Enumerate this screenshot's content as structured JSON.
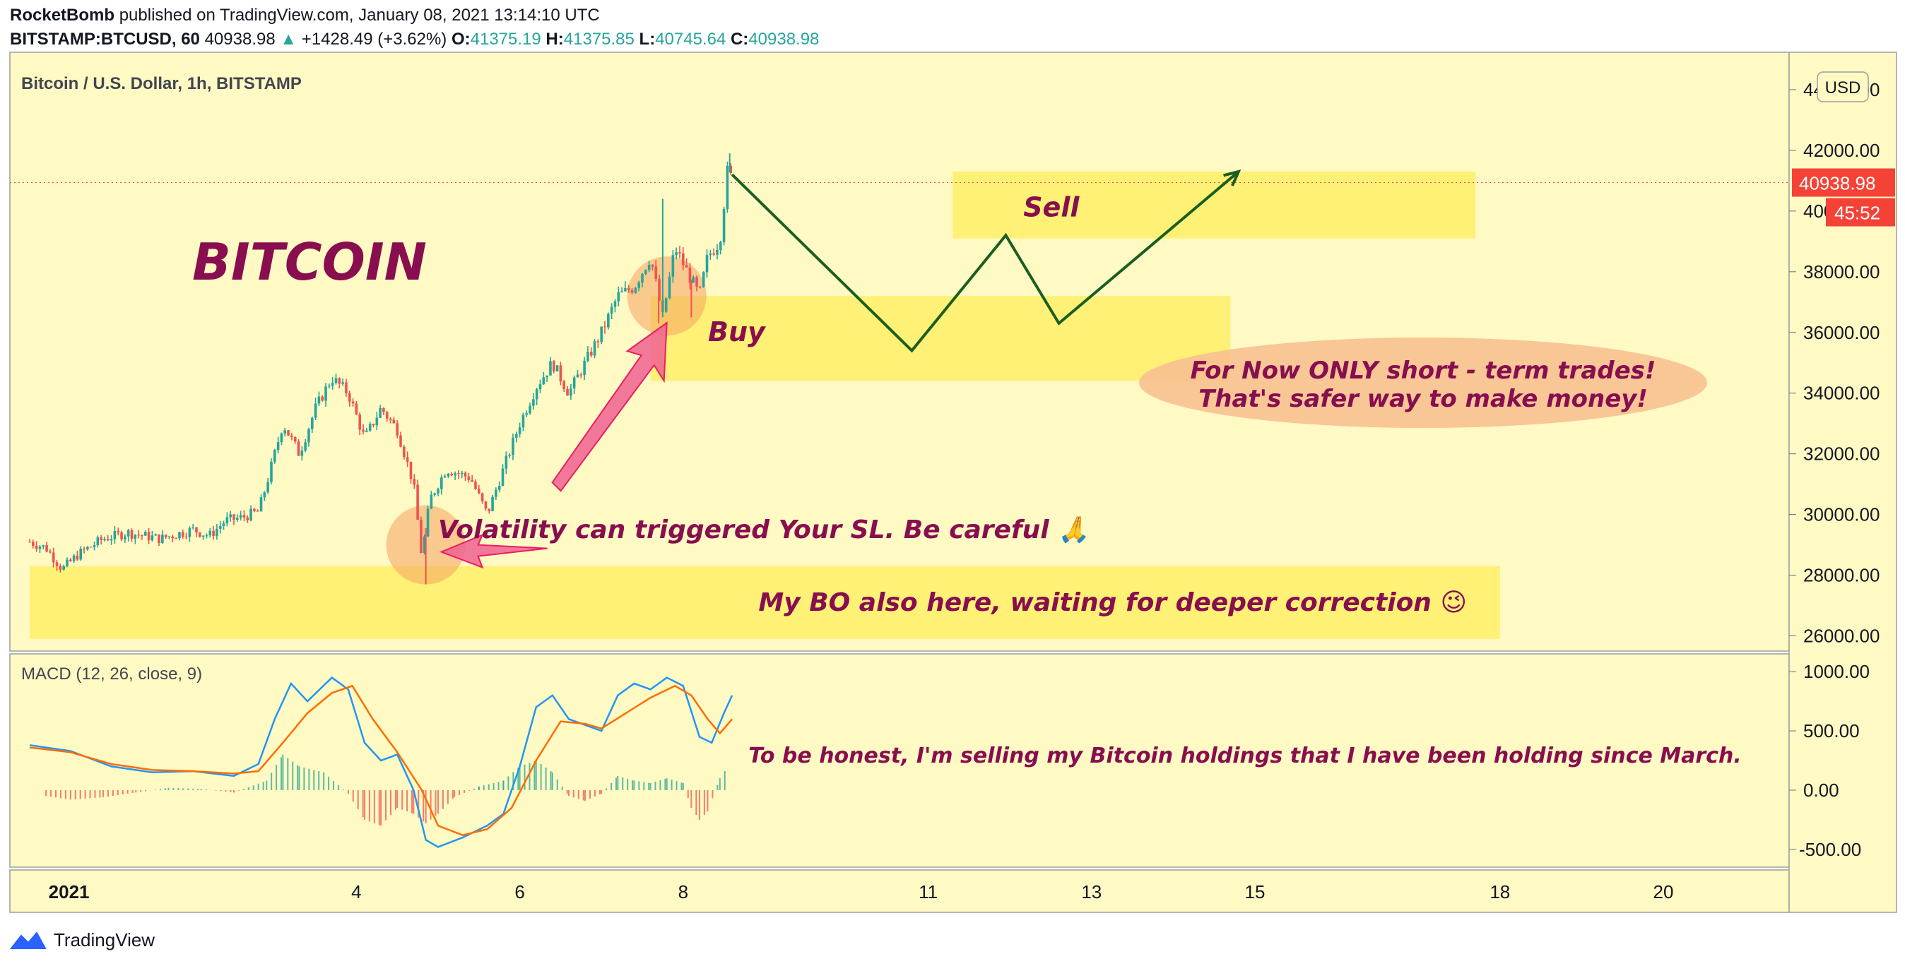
{
  "header": {
    "publisher": "RocketBomb",
    "published_on": "published on TradingView.com, January 08, 2021 13:14:10 UTC",
    "symbol": "BITSTAMP:BTCUSD, 60",
    "last": "40938.98",
    "change": "+1428.49 (+3.62%)",
    "open_label": "O:",
    "open": "41375.19",
    "high_label": "H:",
    "high": "41375.85",
    "low_label": "L:",
    "low": "40745.64",
    "close_label": "C:",
    "close": "40938.98"
  },
  "footer": {
    "brand": "TradingView"
  },
  "colors": {
    "background": "#fff9c4",
    "zone": "#fff176",
    "up": "#26a69a",
    "down": "#ef5350",
    "text_accent": "#880e4f",
    "path": "#1b5e20",
    "price_tag": "#f44336",
    "macd_line": "#2196f3",
    "signal_line": "#ff6d00"
  },
  "chart_data": [
    {
      "type": "candlestick",
      "title": "Bitcoin / U.S. Dollar, 1h, BITSTAMP",
      "currency": "USD",
      "ylim": [
        25500,
        45000
      ],
      "y_ticks": [
        "26000.00",
        "28000.00",
        "30000.00",
        "32000.00",
        "34000.00",
        "36000.00",
        "38000.00",
        "40000.00",
        "42000.00",
        "44000.00"
      ],
      "x_ticks": [
        {
          "label": "2021",
          "day": 1
        },
        {
          "label": "4",
          "day": 4
        },
        {
          "label": "6",
          "day": 6
        },
        {
          "label": "8",
          "day": 8
        },
        {
          "label": "11",
          "day": 11
        },
        {
          "label": "13",
          "day": 13
        },
        {
          "label": "15",
          "day": 15
        },
        {
          "label": "18",
          "day": 18
        },
        {
          "label": "20",
          "day": 20
        }
      ],
      "price_path": [
        {
          "day": 0.0,
          "price": 29100
        },
        {
          "day": 0.2,
          "price": 28900
        },
        {
          "day": 0.4,
          "price": 28200
        },
        {
          "day": 0.6,
          "price": 28700
        },
        {
          "day": 0.9,
          "price": 29200
        },
        {
          "day": 1.2,
          "price": 29400
        },
        {
          "day": 1.6,
          "price": 29200
        },
        {
          "day": 2.0,
          "price": 29500
        },
        {
          "day": 2.2,
          "price": 29300
        },
        {
          "day": 2.4,
          "price": 29800
        },
        {
          "day": 2.6,
          "price": 29900
        },
        {
          "day": 2.8,
          "price": 30100
        },
        {
          "day": 2.9,
          "price": 31000
        },
        {
          "day": 3.1,
          "price": 33000
        },
        {
          "day": 3.3,
          "price": 32000
        },
        {
          "day": 3.5,
          "price": 33500
        },
        {
          "day": 3.7,
          "price": 34500
        },
        {
          "day": 3.9,
          "price": 34000
        },
        {
          "day": 4.1,
          "price": 32500
        },
        {
          "day": 4.3,
          "price": 33500
        },
        {
          "day": 4.5,
          "price": 32800
        },
        {
          "day": 4.7,
          "price": 31000
        },
        {
          "day": 4.8,
          "price": 28600
        },
        {
          "day": 4.9,
          "price": 30500
        },
        {
          "day": 5.1,
          "price": 31500
        },
        {
          "day": 5.4,
          "price": 31200
        },
        {
          "day": 5.6,
          "price": 30000
        },
        {
          "day": 5.8,
          "price": 31500
        },
        {
          "day": 6.0,
          "price": 33000
        },
        {
          "day": 6.2,
          "price": 34200
        },
        {
          "day": 6.4,
          "price": 35000
        },
        {
          "day": 6.6,
          "price": 34000
        },
        {
          "day": 6.8,
          "price": 35000
        },
        {
          "day": 7.0,
          "price": 36000
        },
        {
          "day": 7.2,
          "price": 37200
        },
        {
          "day": 7.4,
          "price": 37500
        },
        {
          "day": 7.6,
          "price": 38500
        },
        {
          "day": 7.75,
          "price": 36500
        },
        {
          "day": 7.9,
          "price": 38800
        },
        {
          "day": 8.05,
          "price": 38000
        },
        {
          "day": 8.2,
          "price": 37200
        },
        {
          "day": 8.3,
          "price": 38500
        },
        {
          "day": 8.45,
          "price": 39000
        },
        {
          "day": 8.55,
          "price": 41500
        },
        {
          "day": 8.6,
          "price": 40938.98
        }
      ],
      "spikes": [
        {
          "day": 4.85,
          "low": 27700
        },
        {
          "day": 7.7,
          "low": 36300
        },
        {
          "day": 7.75,
          "high": 40400
        },
        {
          "day": 8.1,
          "low": 36500
        },
        {
          "day": 8.57,
          "high": 41900
        }
      ],
      "last_price": "40938.98",
      "countdown": "45:52",
      "zones": [
        {
          "label": "Sell",
          "day_from": 11.3,
          "day_to": 17.7,
          "y_from": 39100,
          "y_to": 41300
        },
        {
          "label": "Buy",
          "day_from": 7.6,
          "day_to": 14.7,
          "y_from": 34400,
          "y_to": 37200
        },
        {
          "label": "My BO also here, waiting for deeper correction 😉",
          "day_from": 0.0,
          "day_to": 18.0,
          "y_from": 25900,
          "y_to": 28300
        }
      ],
      "projection": [
        {
          "day": 8.6,
          "price": 41200
        },
        {
          "day": 10.8,
          "price": 35400
        },
        {
          "day": 11.95,
          "price": 39200
        },
        {
          "day": 12.6,
          "price": 36300
        },
        {
          "day": 14.8,
          "price": 41300
        }
      ],
      "circles": [
        {
          "day": 4.85,
          "price": 29000
        },
        {
          "day": 7.8,
          "price": 37200
        }
      ],
      "annotations": {
        "bitcoin": "BITCOIN",
        "volatility": "Volatility can triggered Your SL. Be careful 🙏",
        "note_line1": "For Now ONLY short - term trades!",
        "note_line2": "That's safer way to make money!"
      }
    },
    {
      "type": "line",
      "title": "MACD (12, 26, close, 9)",
      "ylim": [
        -650,
        1150
      ],
      "y_ticks": [
        "1000.00",
        "500.00",
        "0.00",
        "-500.00"
      ],
      "series": [
        {
          "name": "MACD",
          "points": [
            {
              "day": 0.0,
              "value": 380
            },
            {
              "day": 0.5,
              "value": 330
            },
            {
              "day": 1.0,
              "value": 200
            },
            {
              "day": 1.5,
              "value": 150
            },
            {
              "day": 2.0,
              "value": 160
            },
            {
              "day": 2.5,
              "value": 120
            },
            {
              "day": 2.8,
              "value": 220
            },
            {
              "day": 3.0,
              "value": 600
            },
            {
              "day": 3.2,
              "value": 900
            },
            {
              "day": 3.4,
              "value": 750
            },
            {
              "day": 3.7,
              "value": 950
            },
            {
              "day": 3.9,
              "value": 850
            },
            {
              "day": 4.1,
              "value": 400
            },
            {
              "day": 4.3,
              "value": 250
            },
            {
              "day": 4.5,
              "value": 300
            },
            {
              "day": 4.7,
              "value": 0
            },
            {
              "day": 4.85,
              "value": -420
            },
            {
              "day": 5.0,
              "value": -480
            },
            {
              "day": 5.3,
              "value": -400
            },
            {
              "day": 5.6,
              "value": -300
            },
            {
              "day": 5.8,
              "value": -200
            },
            {
              "day": 6.0,
              "value": 200
            },
            {
              "day": 6.2,
              "value": 700
            },
            {
              "day": 6.4,
              "value": 800
            },
            {
              "day": 6.6,
              "value": 600
            },
            {
              "day": 6.8,
              "value": 550
            },
            {
              "day": 7.0,
              "value": 500
            },
            {
              "day": 7.2,
              "value": 800
            },
            {
              "day": 7.4,
              "value": 900
            },
            {
              "day": 7.6,
              "value": 850
            },
            {
              "day": 7.8,
              "value": 950
            },
            {
              "day": 8.0,
              "value": 880
            },
            {
              "day": 8.2,
              "value": 450
            },
            {
              "day": 8.35,
              "value": 400
            },
            {
              "day": 8.5,
              "value": 650
            },
            {
              "day": 8.6,
              "value": 800
            }
          ]
        },
        {
          "name": "Signal",
          "points": [
            {
              "day": 0.0,
              "value": 360
            },
            {
              "day": 0.5,
              "value": 320
            },
            {
              "day": 1.0,
              "value": 220
            },
            {
              "day": 1.5,
              "value": 170
            },
            {
              "day": 2.0,
              "value": 160
            },
            {
              "day": 2.5,
              "value": 140
            },
            {
              "day": 2.8,
              "value": 160
            },
            {
              "day": 3.1,
              "value": 400
            },
            {
              "day": 3.4,
              "value": 650
            },
            {
              "day": 3.7,
              "value": 820
            },
            {
              "day": 3.95,
              "value": 880
            },
            {
              "day": 4.2,
              "value": 600
            },
            {
              "day": 4.5,
              "value": 320
            },
            {
              "day": 4.8,
              "value": 0
            },
            {
              "day": 5.0,
              "value": -300
            },
            {
              "day": 5.3,
              "value": -380
            },
            {
              "day": 5.6,
              "value": -330
            },
            {
              "day": 5.9,
              "value": -150
            },
            {
              "day": 6.2,
              "value": 250
            },
            {
              "day": 6.5,
              "value": 580
            },
            {
              "day": 6.8,
              "value": 560
            },
            {
              "day": 7.0,
              "value": 520
            },
            {
              "day": 7.3,
              "value": 650
            },
            {
              "day": 7.6,
              "value": 780
            },
            {
              "day": 7.9,
              "value": 880
            },
            {
              "day": 8.1,
              "value": 800
            },
            {
              "day": 8.3,
              "value": 600
            },
            {
              "day": 8.45,
              "value": 480
            },
            {
              "day": 8.6,
              "value": 600
            }
          ]
        }
      ],
      "histogram": [
        {
          "day": 0.2,
          "value": -50
        },
        {
          "day": 0.5,
          "value": -80
        },
        {
          "day": 0.9,
          "value": -60
        },
        {
          "day": 1.3,
          "value": -20
        },
        {
          "day": 1.7,
          "value": 20
        },
        {
          "day": 2.1,
          "value": 10
        },
        {
          "day": 2.5,
          "value": -20
        },
        {
          "day": 2.9,
          "value": 80
        },
        {
          "day": 3.1,
          "value": 300
        },
        {
          "day": 3.3,
          "value": 200
        },
        {
          "day": 3.6,
          "value": 150
        },
        {
          "day": 3.9,
          "value": -30
        },
        {
          "day": 4.1,
          "value": -250
        },
        {
          "day": 4.3,
          "value": -300
        },
        {
          "day": 4.5,
          "value": -150
        },
        {
          "day": 4.7,
          "value": -200
        },
        {
          "day": 4.85,
          "value": -280
        },
        {
          "day": 5.0,
          "value": -200
        },
        {
          "day": 5.2,
          "value": -60
        },
        {
          "day": 5.5,
          "value": 30
        },
        {
          "day": 5.8,
          "value": 80
        },
        {
          "day": 6.0,
          "value": 200
        },
        {
          "day": 6.2,
          "value": 250
        },
        {
          "day": 6.4,
          "value": 150
        },
        {
          "day": 6.6,
          "value": -50
        },
        {
          "day": 6.8,
          "value": -90
        },
        {
          "day": 7.0,
          "value": -30
        },
        {
          "day": 7.2,
          "value": 120
        },
        {
          "day": 7.4,
          "value": 80
        },
        {
          "day": 7.6,
          "value": 60
        },
        {
          "day": 7.8,
          "value": 100
        },
        {
          "day": 8.0,
          "value": 60
        },
        {
          "day": 8.1,
          "value": -150
        },
        {
          "day": 8.2,
          "value": -250
        },
        {
          "day": 8.3,
          "value": -180
        },
        {
          "day": 8.45,
          "value": 100
        },
        {
          "day": 8.55,
          "value": 200
        }
      ],
      "annotation": "To be honest, I'm selling my Bitcoin holdings that I have been holding since March."
    }
  ]
}
